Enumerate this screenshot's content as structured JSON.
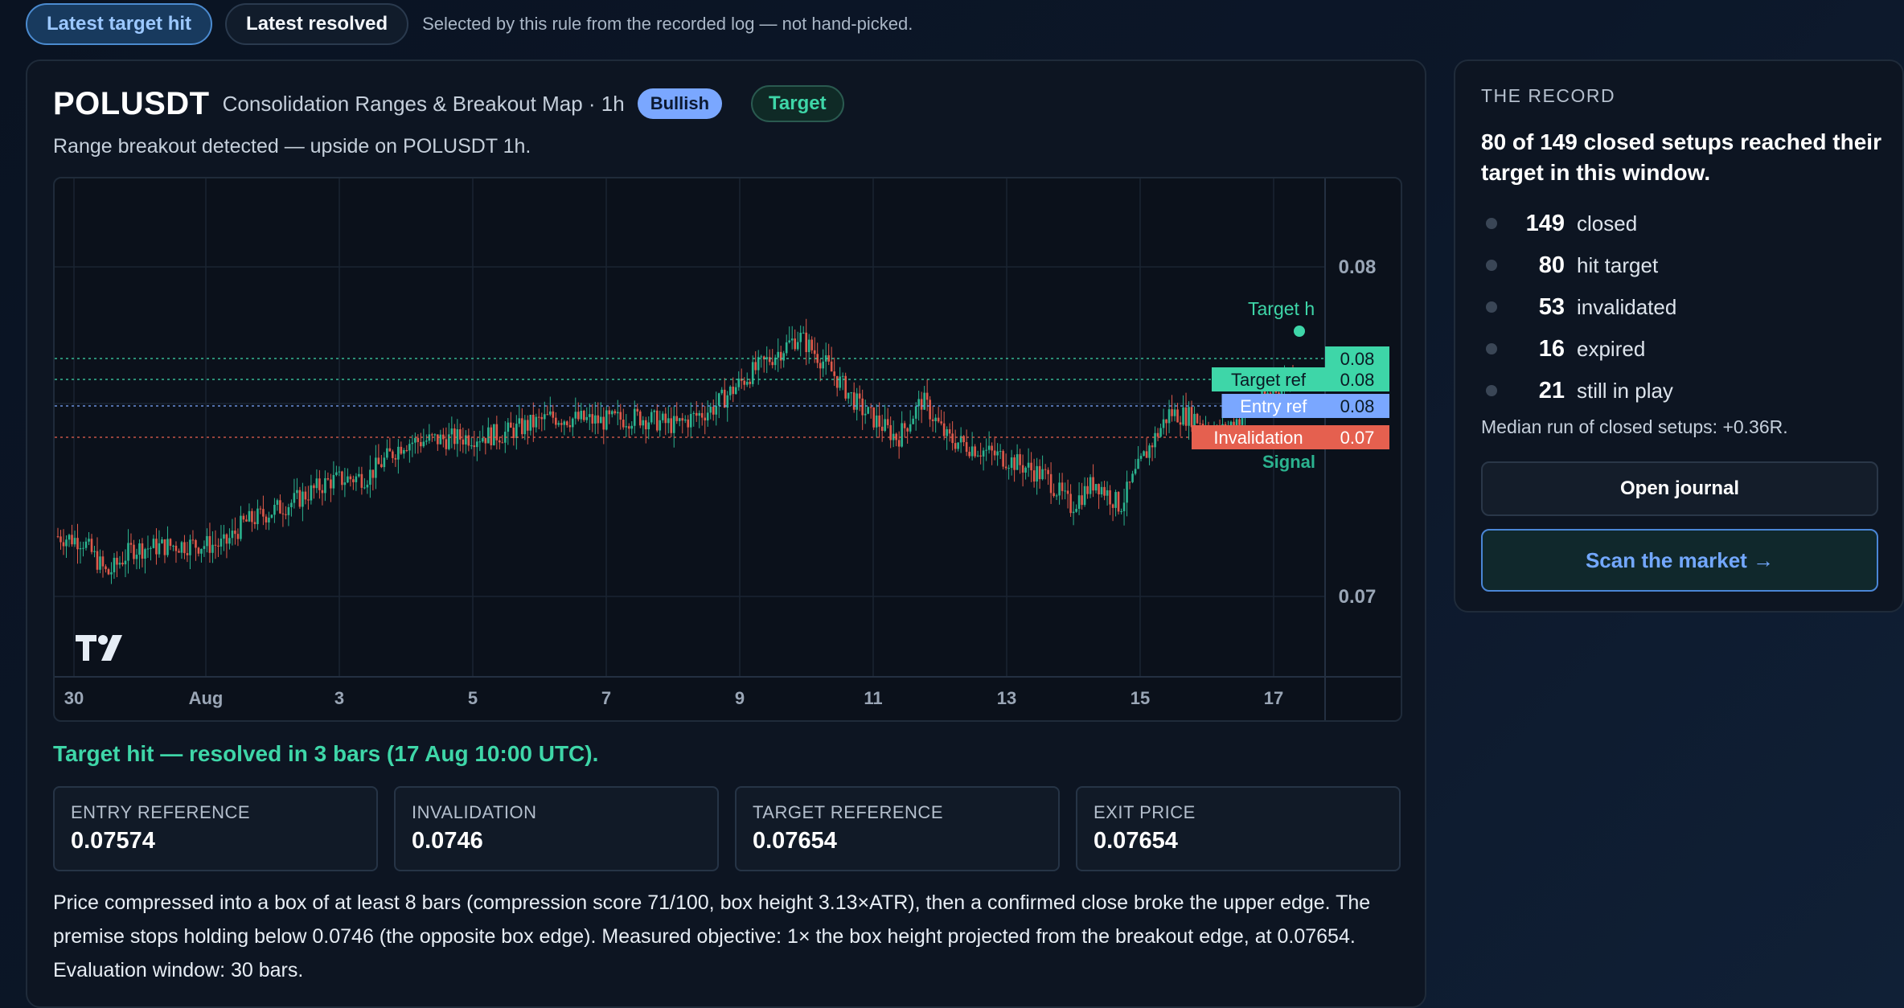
{
  "topbar": {
    "tab_active": "Latest target hit",
    "tab_inactive": "Latest resolved",
    "note": "Selected by this rule from the recorded log — not hand-picked."
  },
  "card": {
    "symbol": "POLUSDT",
    "subtitle": "Consolidation Ranges & Breakout Map · 1h",
    "badge_direction": "Bullish",
    "badge_status": "Target",
    "detected": "Range breakout detected — upside on POLUSDT 1h.",
    "result": "Target hit — resolved in 3 bars (17 Aug 10:00 UTC).",
    "stats": [
      {
        "label": "ENTRY REFERENCE",
        "value": "0.07574"
      },
      {
        "label": "INVALIDATION",
        "value": "0.0746"
      },
      {
        "label": "TARGET REFERENCE",
        "value": "0.07654"
      },
      {
        "label": "EXIT PRICE",
        "value": "0.07654"
      }
    ],
    "description": "Price compressed into a box of at least 8 bars (compression score 71/100, box height 3.13×ATR), then a confirmed close broke the upper edge. The premise stops holding below 0.0746 (the opposite box edge). Measured objective: 1× the box height projected from the breakout edge, at 0.07654. Evaluation window: 30 bars."
  },
  "chart_data": {
    "type": "candlestick",
    "symbol": "POLUSDT",
    "timeframe": "1h",
    "x_tick_labels": [
      "30",
      "Aug",
      "3",
      "5",
      "7",
      "9",
      "11",
      "13",
      "15",
      "17"
    ],
    "y_tick_labels": [
      "0.08",
      "0.07"
    ],
    "ylim": [
      0.0695,
      0.0812
    ],
    "levels": [
      {
        "name": "Target hit",
        "value": 0.07654,
        "label": "0.08",
        "color": "#3ed6a8"
      },
      {
        "name": "Target ref",
        "value": 0.07654,
        "label": "0.08",
        "color": "#3ed6a8"
      },
      {
        "name": "Entry ref",
        "value": 0.07574,
        "label": "0.08",
        "color": "#7aa7ff"
      },
      {
        "name": "Invalidation",
        "value": 0.0746,
        "label": "0.07",
        "color": "#e5604f"
      }
    ],
    "markers": [
      "Target h",
      "Signal"
    ],
    "price_path": [
      [
        0,
        0.0728
      ],
      [
        0.02,
        0.0727
      ],
      [
        0.04,
        0.0719
      ],
      [
        0.06,
        0.0725
      ],
      [
        0.1,
        0.0726
      ],
      [
        0.135,
        0.0726
      ],
      [
        0.15,
        0.0731
      ],
      [
        0.19,
        0.0736
      ],
      [
        0.22,
        0.0741
      ],
      [
        0.25,
        0.0742
      ],
      [
        0.28,
        0.075
      ],
      [
        0.32,
        0.0751
      ],
      [
        0.36,
        0.0752
      ],
      [
        0.4,
        0.0756
      ],
      [
        0.44,
        0.0755
      ],
      [
        0.47,
        0.0756
      ],
      [
        0.5,
        0.0754
      ],
      [
        0.53,
        0.0758
      ],
      [
        0.56,
        0.0766
      ],
      [
        0.6,
        0.0775
      ],
      [
        0.62,
        0.0769
      ],
      [
        0.65,
        0.0758
      ],
      [
        0.68,
        0.0751
      ],
      [
        0.7,
        0.076
      ],
      [
        0.72,
        0.0751
      ],
      [
        0.74,
        0.0749
      ],
      [
        0.77,
        0.0746
      ],
      [
        0.8,
        0.0742
      ],
      [
        0.82,
        0.0735
      ],
      [
        0.84,
        0.0741
      ],
      [
        0.86,
        0.0735
      ],
      [
        0.88,
        0.0747
      ],
      [
        0.9,
        0.0757
      ],
      [
        0.92,
        0.0756
      ],
      [
        0.94,
        0.0752
      ],
      [
        0.97,
        0.0759
      ],
      [
        1.0,
        0.0766
      ]
    ]
  },
  "record": {
    "heading": "THE RECORD",
    "summary": "80 of 149 closed setups reached their target in this window.",
    "items": [
      {
        "num": "149",
        "label": "closed"
      },
      {
        "num": "80",
        "label": "hit target"
      },
      {
        "num": "53",
        "label": "invalidated"
      },
      {
        "num": "16",
        "label": "expired"
      },
      {
        "num": "21",
        "label": "still in play"
      }
    ],
    "median": "Median run of closed setups: +0.36R.",
    "journal_button": "Open journal",
    "scan_button": "Scan the market →"
  }
}
